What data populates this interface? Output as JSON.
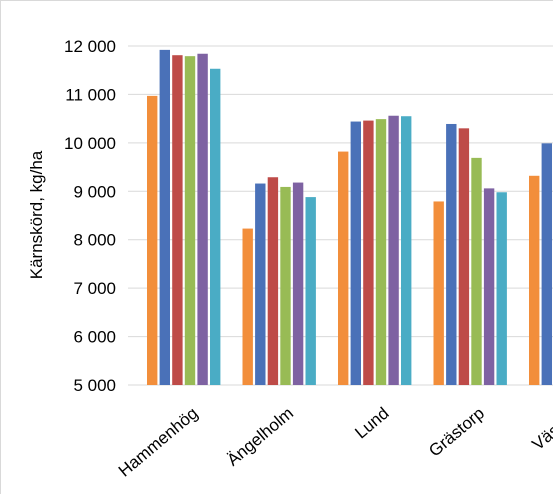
{
  "chart_data": {
    "type": "bar",
    "title": "",
    "xlabel": "",
    "ylabel": "Kärnskörd, kg/ha",
    "ylim": [
      5000,
      12000
    ],
    "yticks": [
      "5 000",
      "6 000",
      "7 000",
      "8 000",
      "9 000",
      "10 000",
      "11 000",
      "12 000"
    ],
    "ytick_values": [
      5000,
      6000,
      7000,
      8000,
      9000,
      10000,
      11000,
      12000
    ],
    "grid": true,
    "categories": [
      "Hammenhög",
      "Ängelholm",
      "Lund",
      "Grästorp",
      "Väster°"
    ],
    "series": [
      {
        "color": "#F28E3B",
        "values": [
          10970,
          8230,
          9820,
          8790,
          9320
        ]
      },
      {
        "color": "#4A71B8",
        "values": [
          11920,
          9160,
          10440,
          10390,
          9990
        ]
      },
      {
        "color": "#BE4B48",
        "values": [
          11810,
          9290,
          10460,
          10300,
          null
        ]
      },
      {
        "color": "#98BB55",
        "values": [
          11790,
          9090,
          10490,
          9690,
          null
        ]
      },
      {
        "color": "#7E62A2",
        "values": [
          11840,
          9180,
          10560,
          9060,
          null
        ]
      },
      {
        "color": "#4AACC5",
        "values": [
          11530,
          8880,
          10550,
          8980,
          null
        ]
      }
    ]
  }
}
